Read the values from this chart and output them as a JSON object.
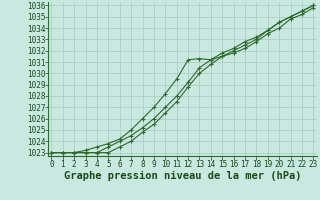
{
  "title": "Graphe pression niveau de la mer (hPa)",
  "background_color": "#c8e8e0",
  "grid_color": "#a8c8c0",
  "line_color": "#2d6a2d",
  "x_hours": [
    0,
    1,
    2,
    3,
    4,
    5,
    6,
    7,
    8,
    9,
    10,
    11,
    12,
    13,
    14,
    15,
    16,
    17,
    18,
    19,
    20,
    21,
    22,
    23
  ],
  "x_labels": [
    "0",
    "1",
    "2",
    "3",
    "4",
    "5",
    "6",
    "7",
    "8",
    "9",
    "10",
    "11",
    "12",
    "13",
    "14",
    "15",
    "16",
    "17",
    "18",
    "19",
    "20",
    "21",
    "22",
    "23"
  ],
  "line1": [
    1023.0,
    1023.0,
    1023.0,
    1023.2,
    1023.5,
    1023.8,
    1024.2,
    1025.0,
    1026.0,
    1027.0,
    1028.2,
    1029.5,
    1031.2,
    1031.3,
    1031.2,
    1031.5,
    1031.8,
    1032.2,
    1032.8,
    1033.5,
    1034.0,
    1034.8,
    1035.2,
    1035.8
  ],
  "line2": [
    1023.0,
    1023.0,
    1023.0,
    1023.0,
    1023.0,
    1023.0,
    1023.5,
    1024.0,
    1024.8,
    1025.5,
    1026.5,
    1027.5,
    1028.8,
    1030.0,
    1030.8,
    1031.5,
    1032.0,
    1032.5,
    1033.0,
    1033.8,
    1034.5,
    1035.0,
    1035.5,
    1036.0
  ],
  "line3": [
    1023.0,
    1023.0,
    1023.0,
    1023.0,
    1023.0,
    1023.5,
    1024.0,
    1024.5,
    1025.2,
    1026.0,
    1027.0,
    1028.0,
    1029.2,
    1030.5,
    1031.2,
    1031.8,
    1032.2,
    1032.8,
    1033.2,
    1033.8,
    1034.5,
    1035.0,
    1035.5,
    1036.0
  ],
  "ylim_min": 1022.7,
  "ylim_max": 1036.3,
  "yticks": [
    1023,
    1024,
    1025,
    1026,
    1027,
    1028,
    1029,
    1030,
    1031,
    1032,
    1033,
    1034,
    1035,
    1036
  ],
  "title_fontsize": 7.5,
  "tick_fontsize": 5.5
}
